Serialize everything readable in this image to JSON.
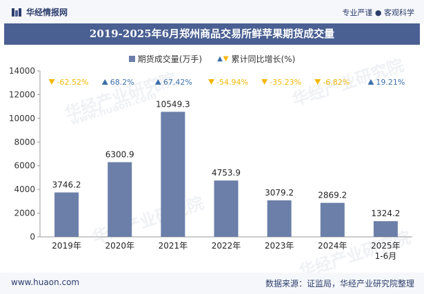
{
  "header": {
    "brand_name": "华经情报网",
    "slogan": "专业严谨 ● 客观科学"
  },
  "footer": {
    "url": "www.huaon.com",
    "source": "数据来源：证监局，华经产业研究院整理"
  },
  "watermark": {
    "text": "华经产业研究院",
    "url_text": "www.huaon.com"
  },
  "chart_data": {
    "type": "bar",
    "title": "2019-2025年6月郑州商品交易所鲜苹果期货成交量",
    "categories": [
      "2019年",
      "2020年",
      "2021年",
      "2022年",
      "2023年",
      "2024年",
      "2025年\n1-6月"
    ],
    "series": [
      {
        "name": "期货成交量(万手)",
        "values": [
          3746.2,
          6300.9,
          10549.3,
          4753.9,
          3079.2,
          2869.2,
          1324.2
        ],
        "color": "#6b7fa8"
      },
      {
        "name": "累计同比增长(%)",
        "values": [
          -62.52,
          68.2,
          67.42,
          -54.94,
          -35.23,
          -6.82,
          19.21
        ],
        "labels": [
          "-62.52%",
          "68.2%",
          "67.42%",
          "-54.94%",
          "-35.23%",
          "-6.82%",
          "19.21%"
        ],
        "up_color": "#3b6fa8",
        "down_color": "#f2b705"
      }
    ],
    "y_ticks": [
      "0",
      "2000",
      "4000",
      "6000",
      "8000",
      "10000",
      "12000",
      "14000"
    ],
    "ylim": [
      0,
      14000
    ],
    "legend_position": "top-center",
    "grid": false
  }
}
